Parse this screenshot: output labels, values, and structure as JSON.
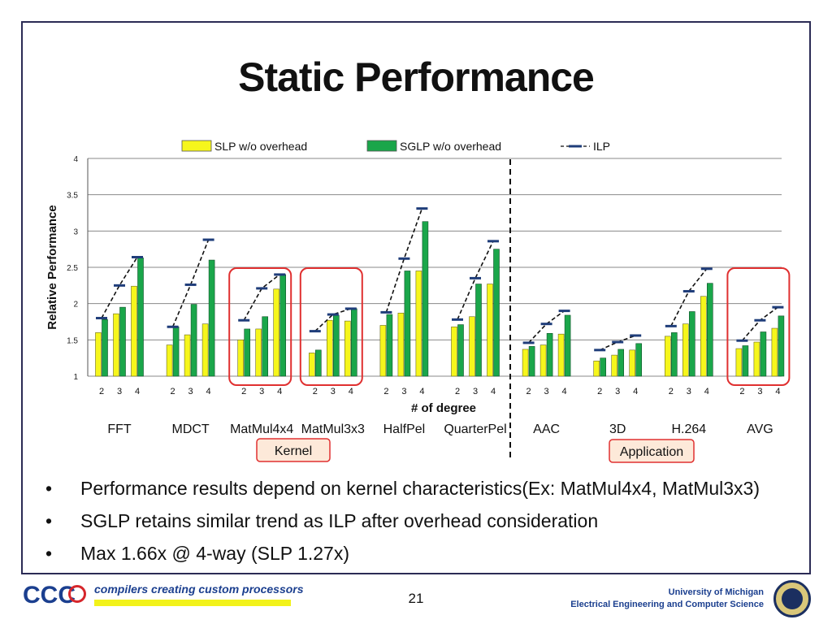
{
  "slide": {
    "title": "Static Performance",
    "page_number": "21",
    "footer": {
      "logo_text": "CCC",
      "tagline": "compilers creating custom processors",
      "university": "University of Michigan",
      "department": "Electrical Engineering and Computer Science"
    },
    "bullets": [
      "Performance results depend on kernel characteristics(Ex: MatMul4x4, MatMul3x3)",
      "SGLP retains similar trend as ILP after overhead consideration",
      "Max 1.66x @ 4-way (SLP 1.27x)"
    ],
    "bullet_symbol": "•",
    "group_labels": {
      "kernel": "Kernel",
      "application": "Application"
    }
  },
  "colors": {
    "slp": "#f6f61c",
    "sglp": "#1aa64a",
    "ilp": "#1f3d7a",
    "highlight": "#e03030",
    "label_box_fill": "#fde9d9"
  },
  "chart_data": {
    "type": "bar",
    "ylabel": "Relative Performance",
    "xlabel": "# of degree",
    "ylim": [
      1,
      4
    ],
    "yticks": [
      "1",
      "1.5",
      "2",
      "2.5",
      "3",
      "3.5",
      "4"
    ],
    "grid": true,
    "legend_position": "top",
    "legend": [
      "SLP w/o overhead",
      "SGLP w/o overhead",
      "ILP"
    ],
    "degrees": [
      "2",
      "3",
      "4"
    ],
    "benchmarks": [
      "FFT",
      "MDCT",
      "MatMul4x4",
      "MatMul3x3",
      "HalfPel",
      "QuarterPel",
      "AAC",
      "3D",
      "H.264",
      "AVG"
    ],
    "series": [
      {
        "name": "SLP w/o overhead",
        "values": [
          [
            1.6,
            1.86,
            2.24
          ],
          [
            1.43,
            1.57,
            1.72
          ],
          [
            1.5,
            1.65,
            2.2
          ],
          [
            1.32,
            1.77,
            1.76
          ],
          [
            1.7,
            1.87,
            2.45
          ],
          [
            1.68,
            1.82,
            2.27
          ],
          [
            1.37,
            1.43,
            1.58
          ],
          [
            1.21,
            1.29,
            1.36
          ],
          [
            1.55,
            1.72,
            2.1
          ],
          [
            1.38,
            1.47,
            1.66
          ]
        ]
      },
      {
        "name": "SGLP w/o overhead",
        "values": [
          [
            1.78,
            1.95,
            2.63
          ],
          [
            1.68,
            1.99,
            2.6
          ],
          [
            1.65,
            1.82,
            2.4
          ],
          [
            1.36,
            1.84,
            1.93
          ],
          [
            1.85,
            2.45,
            3.13
          ],
          [
            1.71,
            2.27,
            2.75
          ],
          [
            1.41,
            1.59,
            1.84
          ],
          [
            1.25,
            1.37,
            1.45
          ],
          [
            1.6,
            1.89,
            2.28
          ],
          [
            1.42,
            1.61,
            1.83
          ]
        ]
      },
      {
        "name": "ILP",
        "values": [
          [
            1.8,
            2.25,
            2.64
          ],
          [
            1.68,
            2.26,
            2.88
          ],
          [
            1.77,
            2.21,
            2.4
          ],
          [
            1.62,
            1.85,
            1.93
          ],
          [
            1.88,
            2.62,
            3.31
          ],
          [
            1.78,
            2.35,
            2.86
          ],
          [
            1.46,
            1.72,
            1.9
          ],
          [
            1.36,
            1.47,
            1.56
          ],
          [
            1.69,
            2.17,
            2.48
          ],
          [
            1.49,
            1.77,
            1.95
          ]
        ]
      }
    ],
    "highlighted": [
      "MatMul4x4",
      "MatMul3x3",
      "AVG"
    ],
    "kernel_benchmarks": [
      "FFT",
      "MDCT",
      "MatMul4x4",
      "MatMul3x3",
      "HalfPel",
      "QuarterPel"
    ],
    "application_benchmarks": [
      "AAC",
      "3D",
      "H.264",
      "AVG"
    ]
  }
}
